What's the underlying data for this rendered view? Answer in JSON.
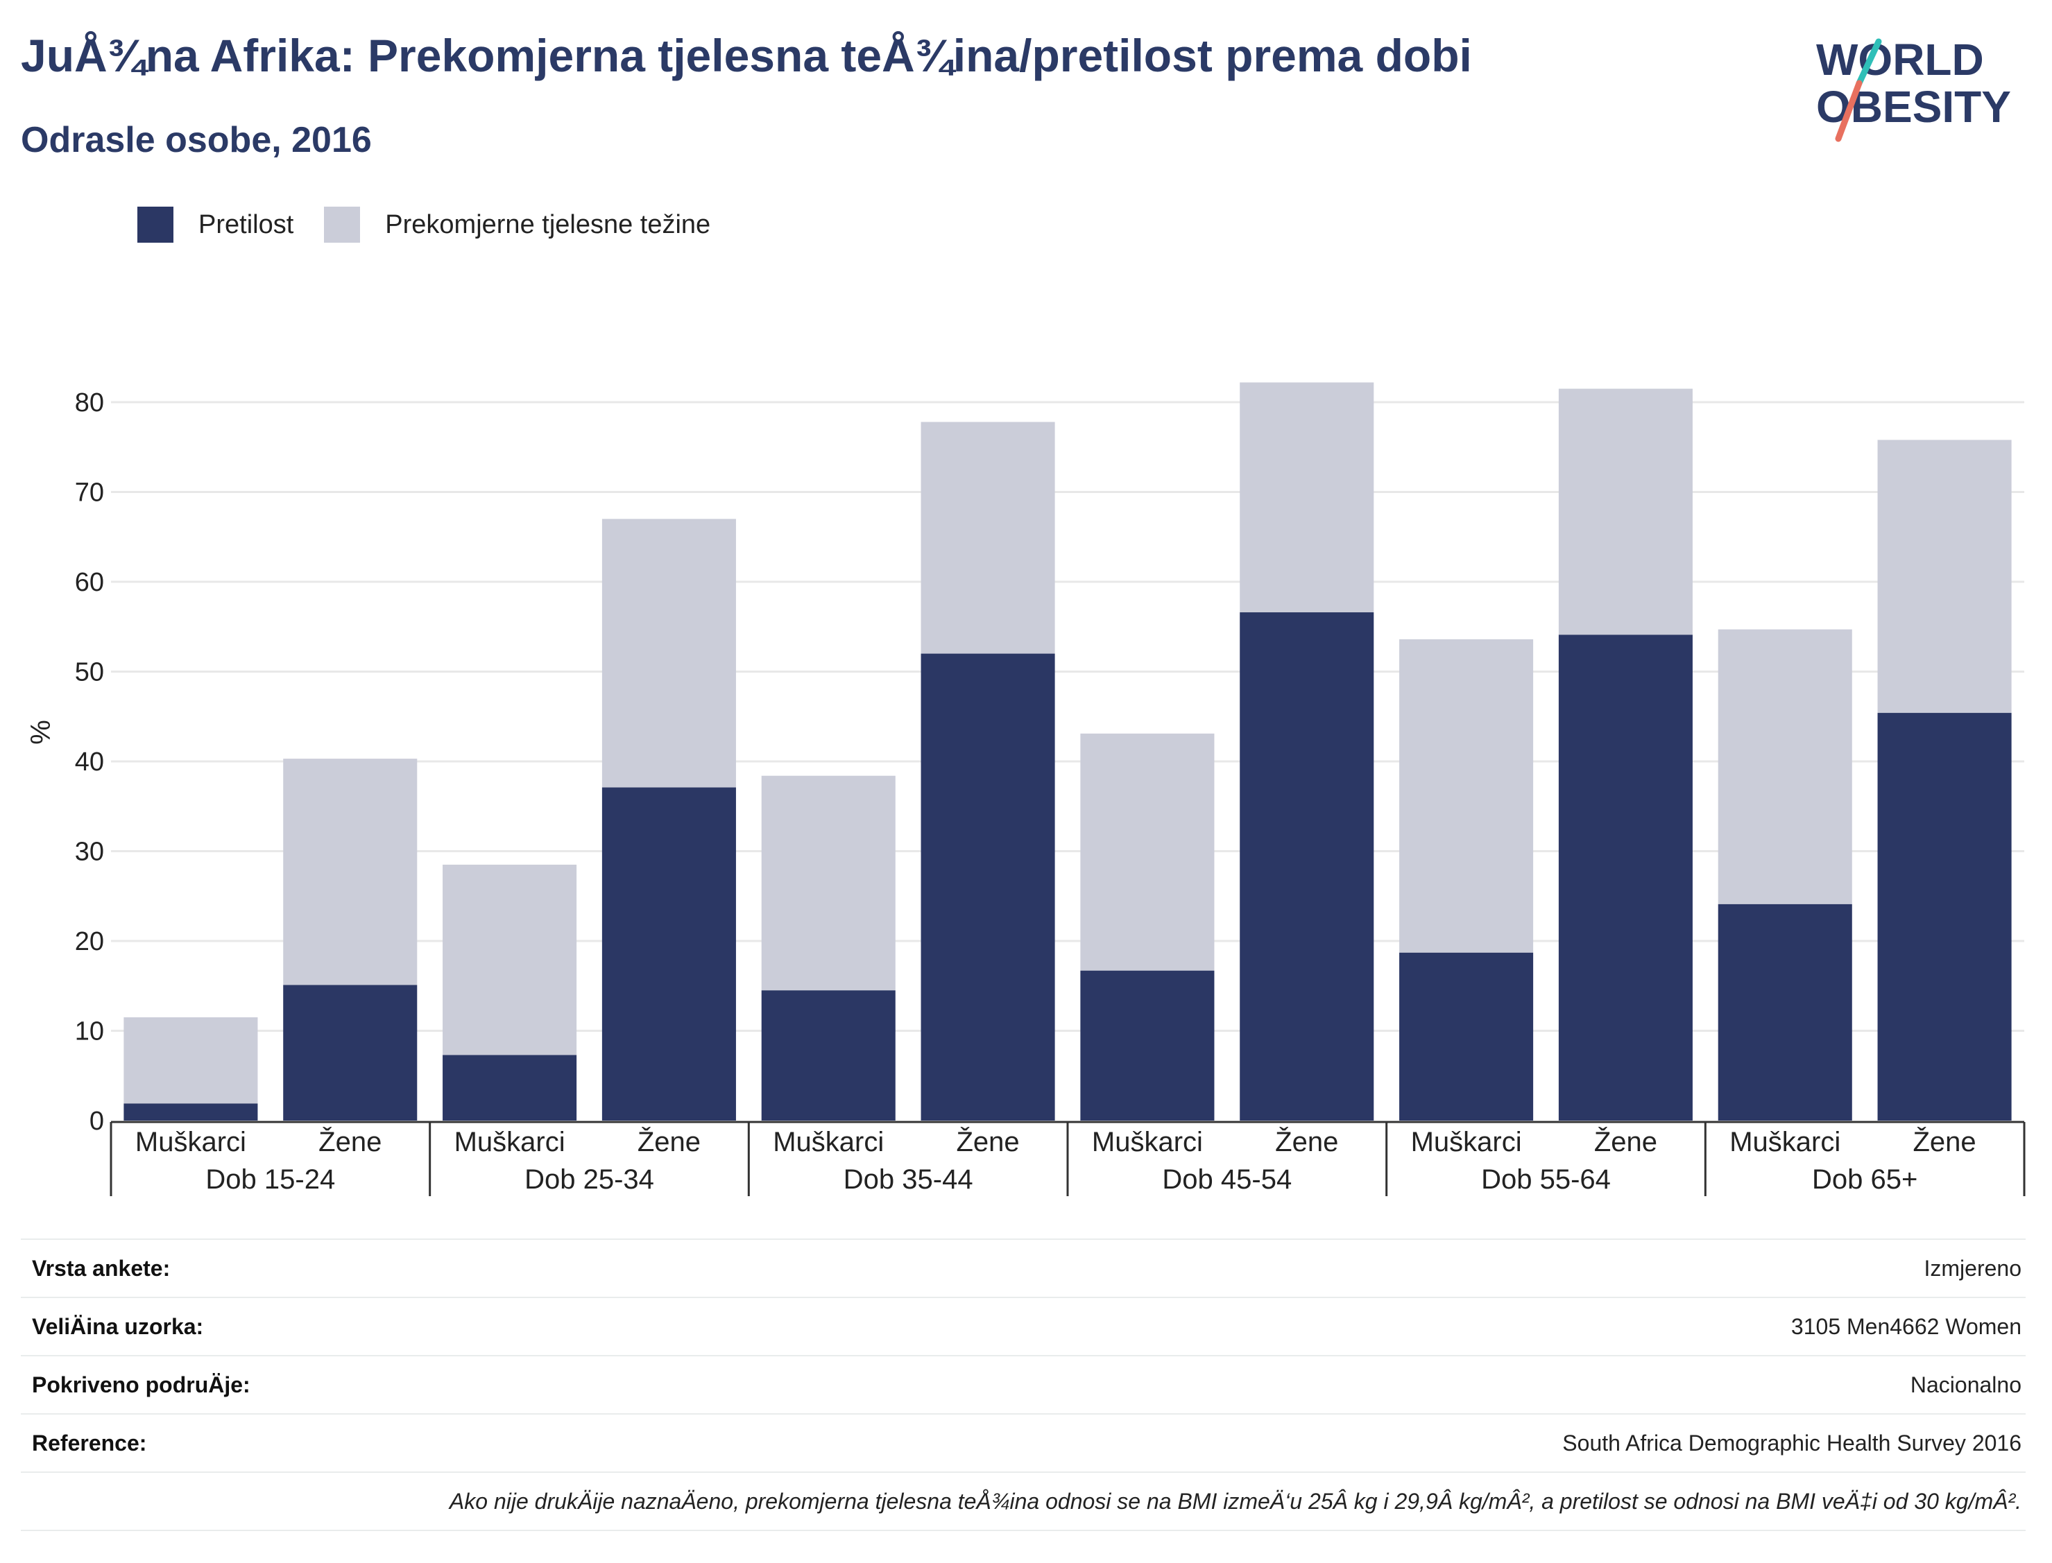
{
  "title": "JuÅ¾na Afrika: Prekomjerna tjelesna teÅ¾ina/pretilost prema dobi",
  "subtitle": "Odrasle osobe, 2016",
  "logo": {
    "line1": "WORLD",
    "line2": "OBESITY"
  },
  "colors": {
    "obesity": "#2b3764",
    "overweight": "#cbcdd9",
    "title": "#2b3a66",
    "logo_teal": "#2fbfb8",
    "logo_coral": "#e8705f"
  },
  "legend": [
    {
      "label": "Pretilost",
      "color": "#2b3764"
    },
    {
      "label": "Prekomjerne tjelesne težine",
      "color": "#cbcdd9"
    }
  ],
  "chart_data": {
    "type": "bar",
    "stacked": true,
    "ylabel": "%",
    "ylim": [
      0,
      85
    ],
    "yticks": [
      0,
      10,
      20,
      30,
      40,
      50,
      60,
      70,
      80
    ],
    "grid": true,
    "legend_position": "top-left",
    "groups": [
      "Dob 15-24",
      "Dob 25-34",
      "Dob 35-44",
      "Dob 45-54",
      "Dob 55-64",
      "Dob 65+"
    ],
    "categories": [
      "Muškarci",
      "Žene",
      "Muškarci",
      "Žene",
      "Muškarci",
      "Žene",
      "Muškarci",
      "Žene",
      "Muškarci",
      "Žene",
      "Muškarci",
      "Žene"
    ],
    "series": [
      {
        "name": "Pretilost",
        "values": [
          1.9,
          15.1,
          7.3,
          37.1,
          14.5,
          52.0,
          16.7,
          56.6,
          18.7,
          54.1,
          24.1,
          45.4
        ]
      },
      {
        "name": "Prekomjerne tjelesne težine",
        "values": [
          9.6,
          25.2,
          21.2,
          29.9,
          23.9,
          25.8,
          26.4,
          25.6,
          34.9,
          27.4,
          30.6,
          30.4
        ]
      }
    ]
  },
  "meta": [
    {
      "key": "Vrsta ankete:",
      "value": "Izmjereno"
    },
    {
      "key": "VeliÄ\u001fina uzorka:",
      "value": "3105 Men4662 Women"
    },
    {
      "key": "Pokriveno podruÄ\u001fje:",
      "value": "Nacionalno"
    },
    {
      "key": "Reference:",
      "value": "South Africa Demographic Health Survey 2016"
    }
  ],
  "note": "Ako nije drukÄ\u001fije naznaÄ\u001feno, prekomjerna tjelesna teÅ¾ina odnosi se na BMI izmeÄ‘u 25Â kg i 29,9Â kg/mÂ², a pretilost se odnosi na BMI veÄ‡i od 30 kg/mÂ²."
}
